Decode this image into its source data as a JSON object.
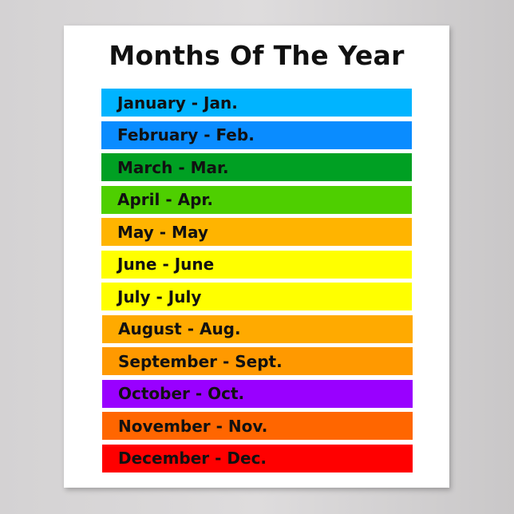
{
  "title": "Months Of The Year",
  "months": [
    {
      "label": "January - Jan.",
      "color": "#00b4ff"
    },
    {
      "label": "February - Feb.",
      "color": "#0a8cff"
    },
    {
      "label": "March - Mar.",
      "color": "#00a023"
    },
    {
      "label": "April - Apr.",
      "color": "#4ecf00"
    },
    {
      "label": "May - May",
      "color": "#ffb400"
    },
    {
      "label": "June - June",
      "color": "#ffff00"
    },
    {
      "label": "July - July",
      "color": "#ffff00"
    },
    {
      "label": "August - Aug.",
      "color": "#ffaa00"
    },
    {
      "label": "September - Sept.",
      "color": "#ff9900"
    },
    {
      "label": "October - Oct.",
      "color": "#9900ff"
    },
    {
      "label": "November - Nov.",
      "color": "#ff6600"
    },
    {
      "label": "December - Dec.",
      "color": "#ff0000"
    }
  ]
}
